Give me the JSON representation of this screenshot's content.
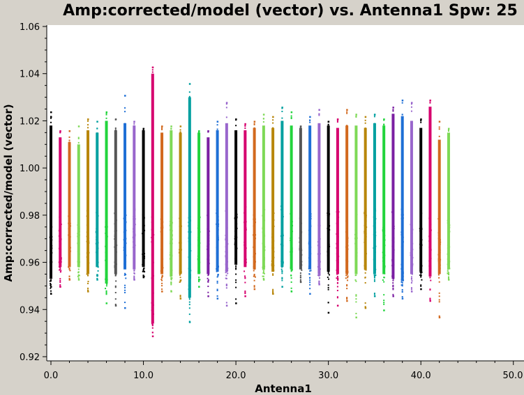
{
  "chart_data": {
    "type": "scatter",
    "title": "Amp:corrected/model (vector) vs. Antenna1 Spw: 25",
    "xlabel": "Antenna1",
    "ylabel": "Amp:corrected/model (vector)",
    "xlim": [
      0,
      50
    ],
    "ylim": [
      0.92,
      1.06
    ],
    "x_ticks": [
      0,
      10,
      20,
      30,
      40,
      50
    ],
    "x_tick_labels": [
      "0.0",
      "10.0",
      "20.0",
      "30.0",
      "40.0",
      "50.0"
    ],
    "y_ticks": [
      0.92,
      0.94,
      0.96,
      0.98,
      1.0,
      1.02,
      1.04,
      1.06
    ],
    "y_tick_labels": [
      "0.92",
      "0.94",
      "0.96",
      "0.98",
      "1.00",
      "1.02",
      "1.04",
      "1.06"
    ],
    "grid": false,
    "colors": [
      "#000000",
      "#d6006e",
      "#d2691e",
      "#7ed957",
      "#b8860b",
      "#22d43c",
      "#00a0a0",
      "#1e6fd6",
      "#9966cc",
      "#555555"
    ],
    "series": [
      {
        "x": 0,
        "body": [
          0.953,
          1.018
        ],
        "outliers": [
          0.947,
          0.95,
          1.022,
          1.024
        ],
        "color": "#000000"
      },
      {
        "x": 1,
        "body": [
          0.958,
          1.013
        ],
        "outliers": [
          0.95,
          1.016
        ],
        "color": "#d6006e"
      },
      {
        "x": 2,
        "body": [
          0.958,
          1.011
        ],
        "outliers": [
          0.953,
          1.016
        ],
        "color": "#d2691e"
      },
      {
        "x": 3,
        "body": [
          0.958,
          1.01
        ],
        "outliers": [
          0.953,
          1.018
        ],
        "color": "#7ed957"
      },
      {
        "x": 4,
        "body": [
          0.955,
          1.016
        ],
        "outliers": [
          0.948,
          1.021
        ],
        "color": "#b8860b"
      },
      {
        "x": 5,
        "body": [
          0.958,
          1.015
        ],
        "outliers": [
          0.953,
          1.02
        ],
        "color": "#00a0a0"
      },
      {
        "x": 6,
        "body": [
          0.951,
          1.02
        ],
        "outliers": [
          0.943,
          1.024
        ],
        "color": "#22d43c"
      },
      {
        "x": 7,
        "body": [
          0.955,
          1.016
        ],
        "outliers": [
          0.942,
          1.021
        ],
        "color": "#555555"
      },
      {
        "x": 8,
        "body": [
          0.957,
          1.019
        ],
        "outliers": [
          0.941,
          1.031
        ],
        "color": "#1e6fd6"
      },
      {
        "x": 9,
        "body": [
          0.957,
          1.018
        ],
        "outliers": [
          0.953,
          1.02
        ],
        "color": "#9966cc"
      },
      {
        "x": 10,
        "body": [
          0.958,
          1.016
        ],
        "outliers": [
          0.954,
          1.017
        ],
        "color": "#000000"
      },
      {
        "x": 11,
        "body": [
          0.934,
          1.04
        ],
        "outliers": [
          0.929,
          1.043
        ],
        "color": "#d6006e"
      },
      {
        "x": 12,
        "body": [
          0.955,
          1.015
        ],
        "outliers": [
          0.948,
          1.018
        ],
        "color": "#d2691e"
      },
      {
        "x": 13,
        "body": [
          0.954,
          1.016
        ],
        "outliers": [
          0.948,
          1.018
        ],
        "color": "#7ed957"
      },
      {
        "x": 14,
        "body": [
          0.955,
          1.015
        ],
        "outliers": [
          0.945,
          1.018
        ],
        "color": "#b8860b"
      },
      {
        "x": 15,
        "body": [
          0.945,
          1.03
        ],
        "outliers": [
          0.935,
          1.036
        ],
        "color": "#00a0a0"
      },
      {
        "x": 16,
        "body": [
          0.955,
          1.015
        ],
        "outliers": [
          0.95,
          1.016
        ],
        "color": "#22d43c"
      },
      {
        "x": 17,
        "body": [
          0.955,
          1.013
        ],
        "outliers": [
          0.946,
          1.016
        ],
        "color": "#7b1fa2"
      },
      {
        "x": 18,
        "body": [
          0.956,
          1.016
        ],
        "outliers": [
          0.945,
          1.02
        ],
        "color": "#1e6fd6"
      },
      {
        "x": 19,
        "body": [
          0.956,
          1.019
        ],
        "outliers": [
          0.942,
          1.028
        ],
        "color": "#9966cc"
      },
      {
        "x": 20,
        "body": [
          0.959,
          1.016
        ],
        "outliers": [
          0.943,
          1.021
        ],
        "color": "#000000"
      },
      {
        "x": 21,
        "body": [
          0.958,
          1.016
        ],
        "outliers": [
          0.946,
          1.019
        ],
        "color": "#d6006e"
      },
      {
        "x": 22,
        "body": [
          0.957,
          1.017
        ],
        "outliers": [
          0.949,
          1.02
        ],
        "color": "#d2691e"
      },
      {
        "x": 23,
        "body": [
          0.957,
          1.018
        ],
        "outliers": [
          0.953,
          1.023
        ],
        "color": "#7ed957"
      },
      {
        "x": 24,
        "body": [
          0.956,
          1.017
        ],
        "outliers": [
          0.947,
          1.022
        ],
        "color": "#b8860b"
      },
      {
        "x": 25,
        "body": [
          0.958,
          1.02
        ],
        "outliers": [
          0.95,
          1.026
        ],
        "color": "#00a0a0"
      },
      {
        "x": 26,
        "body": [
          0.957,
          1.018
        ],
        "outliers": [
          0.948,
          1.024
        ],
        "color": "#22d43c"
      },
      {
        "x": 27,
        "body": [
          0.957,
          1.017
        ],
        "outliers": [
          0.952,
          1.018
        ],
        "color": "#555555"
      },
      {
        "x": 28,
        "body": [
          0.957,
          1.018
        ],
        "outliers": [
          0.947,
          1.022
        ],
        "color": "#1e6fd6"
      },
      {
        "x": 29,
        "body": [
          0.955,
          1.019
        ],
        "outliers": [
          0.951,
          1.025
        ],
        "color": "#9966cc"
      },
      {
        "x": 30,
        "body": [
          0.956,
          1.018
        ],
        "outliers": [
          0.939,
          1.02
        ],
        "color": "#000000"
      },
      {
        "x": 31,
        "body": [
          0.955,
          1.017
        ],
        "outliers": [
          0.942,
          1.021
        ],
        "color": "#d6006e"
      },
      {
        "x": 32,
        "body": [
          0.955,
          1.018
        ],
        "outliers": [
          0.944,
          1.025
        ],
        "color": "#d2691e"
      },
      {
        "x": 33,
        "body": [
          0.955,
          1.018
        ],
        "outliers": [
          0.937,
          1.023
        ],
        "color": "#7ed957"
      },
      {
        "x": 34,
        "body": [
          0.957,
          1.017
        ],
        "outliers": [
          0.941,
          1.022
        ],
        "color": "#b8860b"
      },
      {
        "x": 35,
        "body": [
          0.955,
          1.019
        ],
        "outliers": [
          0.946,
          1.023
        ],
        "color": "#00a0a0"
      },
      {
        "x": 36,
        "body": [
          0.955,
          1.018
        ],
        "outliers": [
          0.94,
          1.021
        ],
        "color": "#22d43c"
      },
      {
        "x": 37,
        "body": [
          0.953,
          1.023
        ],
        "outliers": [
          0.946,
          1.026
        ],
        "color": "#7b1fa2"
      },
      {
        "x": 38,
        "body": [
          0.952,
          1.022
        ],
        "outliers": [
          0.945,
          1.029
        ],
        "color": "#1e6fd6"
      },
      {
        "x": 39,
        "body": [
          0.955,
          1.02
        ],
        "outliers": [
          0.948,
          1.028
        ],
        "color": "#9966cc"
      },
      {
        "x": 40,
        "body": [
          0.956,
          1.017
        ],
        "outliers": [
          0.949,
          1.021
        ],
        "color": "#000000"
      },
      {
        "x": 41,
        "body": [
          0.954,
          1.026
        ],
        "outliers": [
          0.944,
          1.029
        ],
        "color": "#d6006e"
      },
      {
        "x": 42,
        "body": [
          0.955,
          1.012
        ],
        "outliers": [
          0.937,
          1.02
        ],
        "color": "#d2691e"
      },
      {
        "x": 43,
        "body": [
          0.957,
          1.015
        ],
        "outliers": [
          0.953,
          1.017
        ],
        "color": "#7ed957"
      }
    ]
  }
}
